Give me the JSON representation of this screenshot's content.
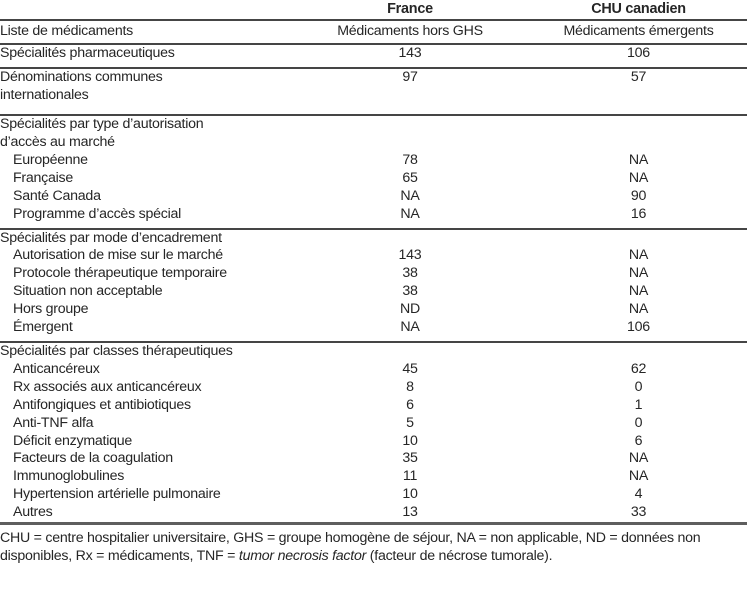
{
  "colors": {
    "text": "#262626",
    "rule": "#454545",
    "heavy_rule": "#5e5e5e",
    "background": "#ffffff"
  },
  "table": {
    "header": {
      "france": "France",
      "chu": "CHU canadien"
    },
    "subheader": {
      "col1": "Liste de médicaments",
      "france": "Médicaments hors GHS",
      "chu": "Médicaments émergents"
    },
    "rows": [
      {
        "kind": "data",
        "label_lines": [
          "Spécialités pharmaceutiques"
        ],
        "france": "143",
        "chu": "106",
        "indent": false,
        "rule_after": true
      },
      {
        "kind": "data",
        "label_lines": [
          "Dénominations communes",
          "internationales"
        ],
        "france": "97",
        "chu": "57",
        "indent": false,
        "rule_after": true,
        "pad": true
      },
      {
        "kind": "group",
        "label_lines": [
          "Spécialités par type d’autorisation",
          "d’accès au marché"
        ],
        "france": "",
        "chu": ""
      },
      {
        "kind": "data",
        "label_lines": [
          "Européenne"
        ],
        "france": "78",
        "chu": "NA",
        "indent": true
      },
      {
        "kind": "data",
        "label_lines": [
          "Française"
        ],
        "france": "65",
        "chu": "NA",
        "indent": true
      },
      {
        "kind": "data",
        "label_lines": [
          "Santé Canada"
        ],
        "france": "NA",
        "chu": "90",
        "indent": true
      },
      {
        "kind": "data",
        "label_lines": [
          "Programme d’accès spécial"
        ],
        "france": "NA",
        "chu": "16",
        "indent": true,
        "rule_after": true
      },
      {
        "kind": "group",
        "label_lines": [
          "Spécialités par mode d’encadrement"
        ],
        "france": "",
        "chu": ""
      },
      {
        "kind": "data",
        "label_lines": [
          "Autorisation de mise sur le marché"
        ],
        "france": "143",
        "chu": "NA",
        "indent": true
      },
      {
        "kind": "data",
        "label_lines": [
          "Protocole thérapeutique temporaire"
        ],
        "france": "38",
        "chu": "NA",
        "indent": true
      },
      {
        "kind": "data",
        "label_lines": [
          "Situation non acceptable"
        ],
        "france": "38",
        "chu": "NA",
        "indent": true
      },
      {
        "kind": "data",
        "label_lines": [
          "Hors groupe"
        ],
        "france": "ND",
        "chu": "NA",
        "indent": true
      },
      {
        "kind": "data",
        "label_lines": [
          "Émergent"
        ],
        "france": "NA",
        "chu": "106",
        "indent": true,
        "rule_after": true
      },
      {
        "kind": "group",
        "label_lines": [
          "Spécialités par classes thérapeutiques"
        ],
        "france": "",
        "chu": ""
      },
      {
        "kind": "data",
        "label_lines": [
          "Anticancéreux"
        ],
        "france": "45",
        "chu": "62",
        "indent": true
      },
      {
        "kind": "data",
        "label_lines": [
          "Rx associés aux anticancéreux"
        ],
        "france": "8",
        "chu": "0",
        "indent": true
      },
      {
        "kind": "data",
        "label_lines": [
          "Antifongiques et antibiotiques"
        ],
        "france": "6",
        "chu": "1",
        "indent": true
      },
      {
        "kind": "data",
        "label_lines": [
          "Anti-TNF alfa"
        ],
        "france": "5",
        "chu": "0",
        "indent": true
      },
      {
        "kind": "data",
        "label_lines": [
          "Déficit enzymatique"
        ],
        "france": "10",
        "chu": "6",
        "indent": true
      },
      {
        "kind": "data",
        "label_lines": [
          "Facteurs de la coagulation"
        ],
        "france": "35",
        "chu": "NA",
        "indent": true
      },
      {
        "kind": "data",
        "label_lines": [
          "Immunoglobulines"
        ],
        "france": "11",
        "chu": "NA",
        "indent": true
      },
      {
        "kind": "data",
        "label_lines": [
          "Hypertension artérielle pulmonaire"
        ],
        "france": "10",
        "chu": "4",
        "indent": true
      },
      {
        "kind": "data",
        "label_lines": [
          "Autres"
        ],
        "france": "13",
        "chu": "33",
        "indent": true
      }
    ]
  },
  "footnote": {
    "segments": [
      {
        "text": "CHU = centre hospitalier universitaire, GHS = groupe homogène de séjour, NA = non applicable, ND = données non disponibles, Rx = médicaments, TNF = ",
        "italic": false
      },
      {
        "text": "tumor necrosis factor",
        "italic": true
      },
      {
        "text": " (facteur de nécrose tumorale).",
        "italic": false
      }
    ]
  }
}
